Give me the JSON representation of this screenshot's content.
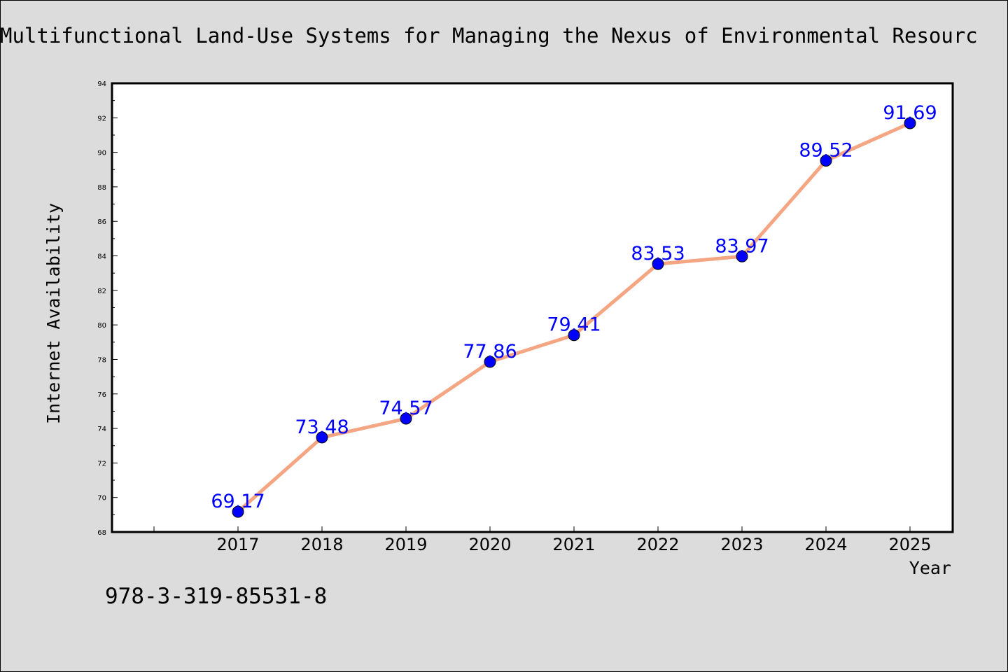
{
  "chart_data": {
    "type": "line",
    "title": "Multifunctional Land-Use Systems for Managing the Nexus of Environmental Resourc",
    "xlabel": "Year",
    "ylabel": "Internet Availability",
    "categories": [
      "2017",
      "2018",
      "2019",
      "2020",
      "2021",
      "2022",
      "2023",
      "2024",
      "2025"
    ],
    "values": [
      69.17,
      73.48,
      74.57,
      77.86,
      79.41,
      83.53,
      83.97,
      89.52,
      91.69
    ],
    "data_labels": [
      "69.17",
      "73.48",
      "74.57",
      "77.86",
      "79.41",
      "83.53",
      "83.97",
      "89.52",
      "91.69"
    ],
    "ylim": [
      68,
      94
    ],
    "yticks": [
      "68",
      "70",
      "72",
      "74",
      "76",
      "78",
      "80",
      "82",
      "84",
      "86",
      "88",
      "90",
      "92",
      "94"
    ],
    "grid": false,
    "legend": "none",
    "colors": {
      "line": "#f4a582",
      "marker": "#0000ff",
      "label": "#0000ff",
      "background": "#dcdcdc",
      "plot_background": "#ffffff"
    }
  },
  "footer": {
    "isbn": "978-3-319-85531-8"
  }
}
